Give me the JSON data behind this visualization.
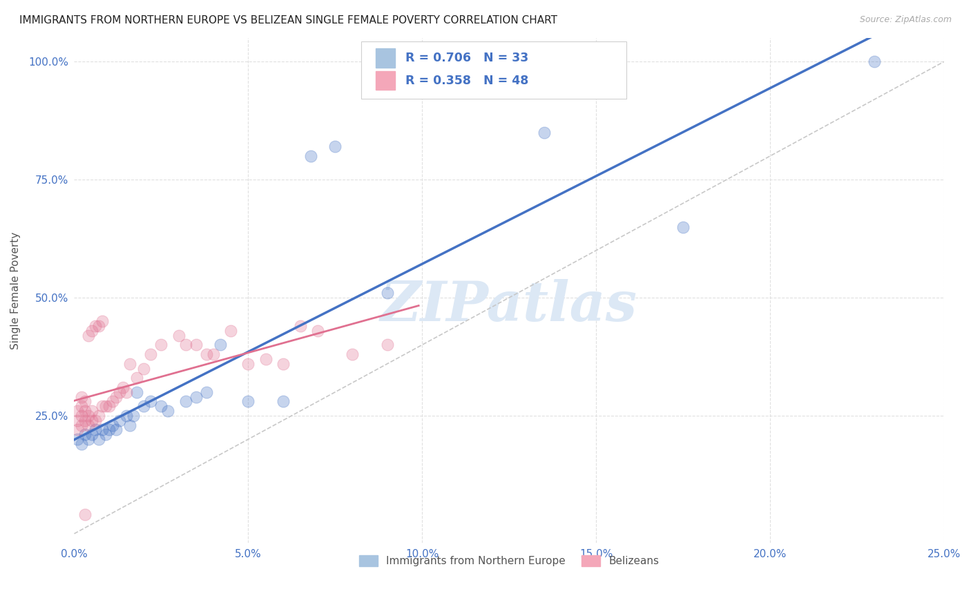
{
  "title": "IMMIGRANTS FROM NORTHERN EUROPE VS BELIZEAN SINGLE FEMALE POVERTY CORRELATION CHART",
  "source": "Source: ZipAtlas.com",
  "ylabel": "Single Female Poverty",
  "xmin": 0.0,
  "xmax": 0.25,
  "ymin": 0.0,
  "ymax": 1.05,
  "x_tick_labels": [
    "0.0%",
    "5.0%",
    "10.0%",
    "15.0%",
    "20.0%",
    "25.0%"
  ],
  "x_tick_vals": [
    0.0,
    0.05,
    0.1,
    0.15,
    0.2,
    0.25
  ],
  "y_tick_labels": [
    "100.0%",
    "75.0%",
    "50.0%",
    "25.0%"
  ],
  "y_tick_vals": [
    1.0,
    0.75,
    0.5,
    0.25
  ],
  "blue_scatter_x": [
    0.001,
    0.002,
    0.003,
    0.004,
    0.005,
    0.006,
    0.007,
    0.008,
    0.009,
    0.01,
    0.011,
    0.012,
    0.013,
    0.015,
    0.016,
    0.017,
    0.018,
    0.02,
    0.022,
    0.025,
    0.027,
    0.032,
    0.035,
    0.038,
    0.042,
    0.05,
    0.06,
    0.068,
    0.075,
    0.09,
    0.135,
    0.175,
    0.23
  ],
  "blue_scatter_y": [
    0.2,
    0.19,
    0.21,
    0.2,
    0.21,
    0.22,
    0.2,
    0.22,
    0.21,
    0.22,
    0.23,
    0.22,
    0.24,
    0.25,
    0.23,
    0.25,
    0.3,
    0.27,
    0.28,
    0.27,
    0.26,
    0.28,
    0.29,
    0.3,
    0.4,
    0.28,
    0.28,
    0.8,
    0.82,
    0.51,
    0.85,
    0.65,
    1.0
  ],
  "pink_scatter_x": [
    0.001,
    0.001,
    0.001,
    0.002,
    0.002,
    0.002,
    0.002,
    0.003,
    0.003,
    0.003,
    0.004,
    0.004,
    0.004,
    0.005,
    0.005,
    0.005,
    0.006,
    0.006,
    0.007,
    0.007,
    0.008,
    0.008,
    0.009,
    0.01,
    0.011,
    0.012,
    0.013,
    0.014,
    0.015,
    0.016,
    0.018,
    0.02,
    0.022,
    0.025,
    0.03,
    0.032,
    0.035,
    0.038,
    0.04,
    0.045,
    0.05,
    0.055,
    0.06,
    0.065,
    0.07,
    0.08,
    0.09,
    0.003
  ],
  "pink_scatter_y": [
    0.22,
    0.24,
    0.26,
    0.23,
    0.25,
    0.27,
    0.29,
    0.24,
    0.26,
    0.28,
    0.23,
    0.25,
    0.42,
    0.24,
    0.26,
    0.43,
    0.24,
    0.44,
    0.25,
    0.44,
    0.27,
    0.45,
    0.27,
    0.27,
    0.28,
    0.29,
    0.3,
    0.31,
    0.3,
    0.36,
    0.33,
    0.35,
    0.38,
    0.4,
    0.42,
    0.4,
    0.4,
    0.38,
    0.38,
    0.43,
    0.36,
    0.37,
    0.36,
    0.44,
    0.43,
    0.38,
    0.4,
    0.04
  ],
  "blue_line_color": "#4472c4",
  "pink_line_color": "#e07090",
  "dashed_line_color": "#c8c8c8",
  "title_color": "#222222",
  "axis_label_color": "#4472c4",
  "ylabel_color": "#555555",
  "background_color": "#ffffff",
  "grid_color": "#e0e0e0",
  "watermark_text": "ZIPatlas",
  "watermark_color": "#dce8f5",
  "legend_R_blue": "0.706",
  "legend_N_blue": "33",
  "legend_R_pink": "0.358",
  "legend_N_pink": "48",
  "legend_label_blue": "Immigrants from Northern Europe",
  "legend_label_pink": "Belizeans"
}
